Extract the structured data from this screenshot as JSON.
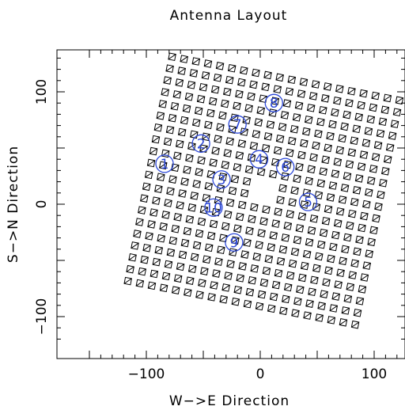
{
  "chart_data": {
    "type": "scatter",
    "title": "Antenna Layout",
    "xlabel": "W−>E Direction",
    "ylabel": "S−>N Direction",
    "xlim": [
      -180,
      130
    ],
    "ylim": [
      -130,
      135
    ],
    "x_ticks": [
      -100,
      0,
      100
    ],
    "y_ticks": [
      -100,
      0,
      100
    ],
    "x_tick_labels": [
      "−100",
      "0",
      "100"
    ],
    "y_tick_labels": [
      "−100",
      "0",
      "100"
    ],
    "grid": false,
    "grid_layout": {
      "rows": 20,
      "cols": 20,
      "spacing": 10.7,
      "rotation_deg": -11,
      "center": [
        3,
        12
      ],
      "missing_center_cells": 4
    },
    "labeled_antennas": [
      {
        "label": "1",
        "x": -84,
        "y": 36
      },
      {
        "label": "2",
        "x": -52,
        "y": 54
      },
      {
        "label": "3",
        "x": -34,
        "y": 22
      },
      {
        "label": "4",
        "x": -1,
        "y": 40
      },
      {
        "label": "5",
        "x": 42,
        "y": 2
      },
      {
        "label": "6",
        "x": 22,
        "y": 33
      },
      {
        "label": "7",
        "x": -20,
        "y": 71
      },
      {
        "label": "8",
        "x": 12,
        "y": 90
      },
      {
        "label": "9",
        "x": -23,
        "y": -34
      },
      {
        "label": "10",
        "x": -41,
        "y": -3
      }
    ],
    "colors": {
      "marker": "#000000",
      "label": "#2b47d8"
    }
  }
}
